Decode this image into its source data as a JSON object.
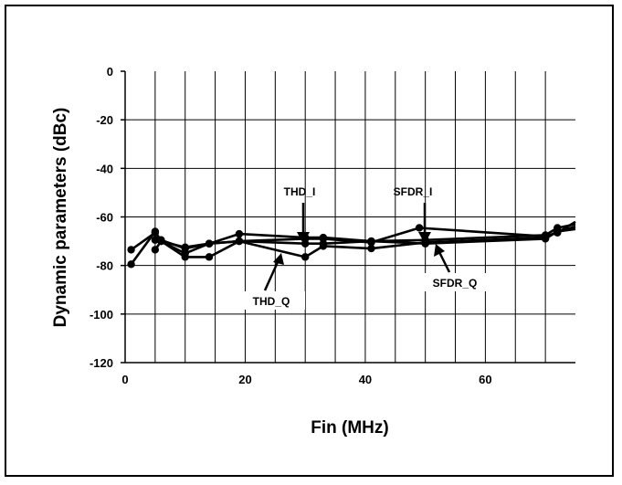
{
  "chart_data": {
    "type": "line",
    "title": "",
    "xlabel": "Fin (MHz)",
    "ylabel": "Dynamic parameters (dBc)",
    "xlim": [
      0,
      75
    ],
    "ylim": [
      -120,
      0
    ],
    "xticks": [
      0,
      20,
      40,
      60
    ],
    "yticks": [
      0,
      -20,
      -40,
      -60,
      -80,
      -100,
      -120
    ],
    "grid": true,
    "series": [
      {
        "name": "THD_I",
        "x": [
          1,
          5,
          6,
          10,
          14,
          19,
          30,
          33,
          41,
          49,
          70,
          72,
          75
        ],
        "y": [
          -73.5,
          -66.5,
          -69.5,
          -73,
          -71,
          -70,
          -69,
          -69,
          -70.5,
          -64.5,
          -68,
          -66.5,
          -62
        ]
      },
      {
        "name": "THD_Q",
        "x": [
          1,
          5,
          6,
          10,
          14,
          19,
          30,
          33,
          41,
          50,
          70,
          72,
          75
        ],
        "y": [
          -79.5,
          -66,
          -70,
          -76.5,
          -76.5,
          -70,
          -76.5,
          -72,
          -73,
          -70.5,
          -68.5,
          -66,
          -64
        ]
      },
      {
        "name": "SFDR_I",
        "x": [
          5,
          6,
          10,
          14,
          19,
          30,
          33,
          41,
          50,
          70,
          72,
          75
        ],
        "y": [
          -69.5,
          -70,
          -72.5,
          -71,
          -67,
          -68.5,
          -68.5,
          -70,
          -69.5,
          -67.5,
          -64.5,
          -63
        ]
      },
      {
        "name": "SFDR_Q",
        "x": [
          5,
          6,
          10,
          14,
          19,
          30,
          33,
          41,
          50,
          70,
          72,
          75
        ],
        "y": [
          -73.5,
          -70,
          -75,
          -71,
          -70,
          -71,
          -71,
          -70,
          -71,
          -69,
          -66,
          -65
        ]
      }
    ],
    "annotations": [
      "THD_I",
      "THD_Q",
      "SFDR_I",
      "SFDR_Q"
    ]
  }
}
